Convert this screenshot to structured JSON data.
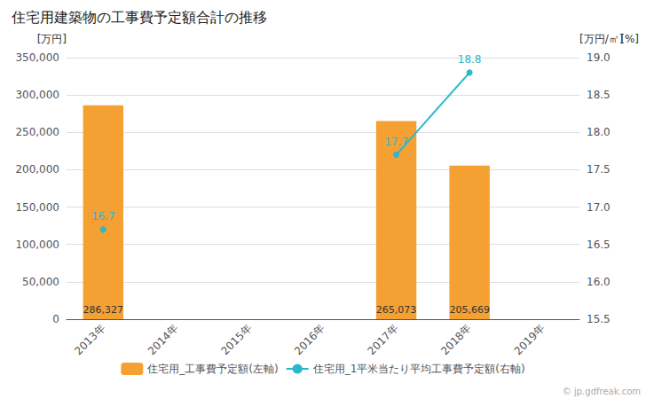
{
  "chart_data": {
    "type": "bar",
    "title": "住宅用建築物の工事費予定額合計の推移",
    "categories": [
      "2013年",
      "2014年",
      "2015年",
      "2016年",
      "2017年",
      "2018年",
      "2019年"
    ],
    "ylabel": "[万円]",
    "y2label": "[万円/㎡]",
    "annotations": [
      "[%]",
      "© jp.gdfreak.com"
    ],
    "ylim": [
      0,
      350000
    ],
    "yticks": [
      0,
      {
        "value": 50000,
        "label": "50,000"
      },
      {
        "value": 100000,
        "label": "100,000"
      },
      {
        "value": 150000,
        "label": "150,000"
      },
      {
        "value": 200000,
        "label": "200,000"
      },
      {
        "value": 250000,
        "label": "250,000"
      },
      {
        "value": 300000,
        "label": "300,000"
      },
      {
        "value": 350000,
        "label": "350,000"
      }
    ],
    "y2lim": [
      15.5,
      19.0
    ],
    "y2ticks": [
      15.5,
      {
        "value": 16.0,
        "label": "16.0"
      },
      16.5,
      {
        "value": 17.0,
        "label": "17.0"
      },
      17.5,
      {
        "value": 18.0,
        "label": "18.0"
      },
      18.5,
      {
        "value": 19.0,
        "label": "19.0"
      }
    ],
    "grid": true,
    "legend": "bottom",
    "series": [
      {
        "name": "住宅用_工事費予定額(左軸)",
        "type": "bar",
        "color": "#f5a033",
        "values": [
          286327,
          null,
          null,
          null,
          265073,
          205669,
          null
        ],
        "data_labels": true,
        "value_labels": [
          "286,327",
          null,
          null,
          null,
          "265,073",
          "205,669",
          null
        ]
      },
      {
        "name": "住宅用_1平米当たり平均工事費予定額(右軸)",
        "type": "line",
        "axis": "y2",
        "color": "#2ab8cc",
        "marker": "circle",
        "values": [
          16.7,
          null,
          null,
          null,
          17.7,
          18.8,
          null
        ],
        "data_labels": true
      }
    ]
  }
}
